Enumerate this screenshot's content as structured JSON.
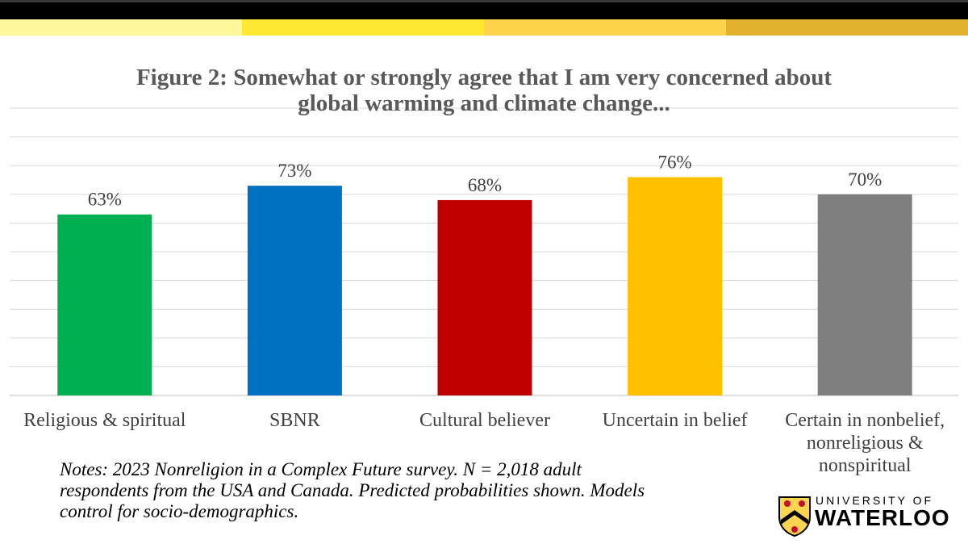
{
  "header": {
    "stripe_colors": [
      "#fff79c",
      "#fee832",
      "#fed34c",
      "#e2b12e"
    ]
  },
  "chart_data": {
    "type": "bar",
    "title": "Figure 2: Somewhat or strongly agree that I am very concerned about\nglobal warming and climate change...",
    "categories": [
      "Religious & spiritual",
      "SBNR",
      "Cultural believer",
      "Uncertain in belief",
      "Certain in nonbelief, nonreligious & nonspiritual"
    ],
    "values": [
      63,
      73,
      68,
      76,
      70
    ],
    "data_labels": [
      "63%",
      "73%",
      "68%",
      "76%",
      "70%"
    ],
    "colors": [
      "#00b050",
      "#0070c0",
      "#c00000",
      "#ffc000",
      "#7f7f7f"
    ],
    "ylim": [
      0,
      100
    ],
    "grid": true,
    "legend": "none"
  },
  "notes": {
    "text": "Notes: 2023 Nonreligion in a Complex Future survey. N = 2,018 adult respondents from the USA and Canada. Predicted probabilities shown. Models control for socio-demographics."
  },
  "logo": {
    "line1": "UNIVERSITY OF",
    "line2": "WATERLOO",
    "colors": [
      "#ffd54f",
      "#c8102e",
      "#000000"
    ]
  }
}
